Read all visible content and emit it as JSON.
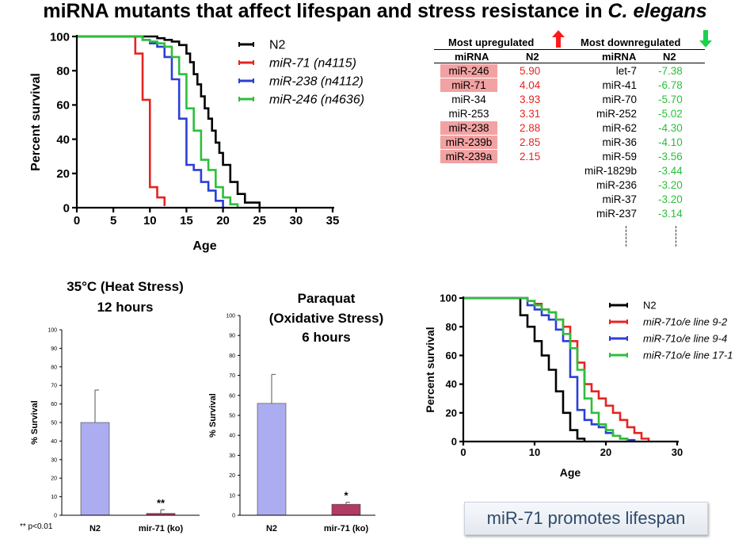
{
  "title": {
    "main": "miRNA mutants that affect lifespan and stress resistance in ",
    "species": "C. elegans"
  },
  "table": {
    "up_header": "Most upregulated",
    "down_header": "Most downregulated",
    "col_mirna": "miRNA",
    "col_n2": "N2",
    "up_color": "#e52421",
    "down_color": "#2cbf3a",
    "highlight_color": "#f2a2a2",
    "up": [
      {
        "name": "miR-246",
        "value": "5.90",
        "hl": true
      },
      {
        "name": "miR-71",
        "value": "4.04",
        "hl": true
      },
      {
        "name": "miR-34",
        "value": "3.93",
        "hl": false
      },
      {
        "name": "miR-253",
        "value": "3.31",
        "hl": false
      },
      {
        "name": "miR-238",
        "value": "2.88",
        "hl": true
      },
      {
        "name": "miR-239b",
        "value": "2.85",
        "hl": true
      },
      {
        "name": "miR-239a",
        "value": "2.15",
        "hl": true
      }
    ],
    "down": [
      {
        "name": "let-7",
        "value": "-7.38"
      },
      {
        "name": "miR-41",
        "value": "-6.78"
      },
      {
        "name": "miR-70",
        "value": "-5.70"
      },
      {
        "name": "miR-252",
        "value": "-5.02"
      },
      {
        "name": "miR-62",
        "value": "-4.30"
      },
      {
        "name": "miR-36",
        "value": "-4.10"
      },
      {
        "name": "miR-59",
        "value": "-3.56"
      },
      {
        "name": "miR-1829b",
        "value": "-3.44"
      },
      {
        "name": "miR-236",
        "value": "-3.20"
      },
      {
        "name": "miR-37",
        "value": "-3.20"
      },
      {
        "name": "miR-237",
        "value": "-3.14"
      }
    ]
  },
  "chart_data": [
    {
      "type": "line",
      "step": true,
      "xlabel": "Age",
      "ylabel": "Percent survival",
      "xlim": [
        0,
        35
      ],
      "ylim": [
        0,
        100
      ],
      "xticks": [
        0,
        5,
        10,
        15,
        20,
        25,
        30,
        35
      ],
      "yticks": [
        0,
        20,
        40,
        60,
        80,
        100
      ],
      "series": [
        {
          "name": "N2",
          "italic": false,
          "color": "#000000",
          "x": [
            0,
            10,
            11,
            12,
            13,
            14,
            15,
            15.5,
            16,
            16.5,
            17,
            17.5,
            18,
            18.5,
            19,
            19.5,
            20,
            21,
            22,
            23,
            25
          ],
          "y": [
            100,
            100,
            99,
            98,
            97,
            95,
            90,
            85,
            78,
            72,
            65,
            58,
            52,
            45,
            38,
            32,
            25,
            15,
            8,
            3,
            0
          ]
        },
        {
          "name": "miR-71 ",
          "suffix": "(n4115)",
          "italic": true,
          "color": "#e52421",
          "x": [
            0,
            7,
            8,
            9,
            10,
            11,
            12
          ],
          "y": [
            100,
            100,
            90,
            63,
            12,
            6,
            1
          ]
        },
        {
          "name": "miR-238 ",
          "suffix": "(n4112)",
          "italic": true,
          "color": "#2b3fd6",
          "x": [
            0,
            8,
            9,
            10,
            11,
            12,
            13,
            14,
            15,
            16,
            17,
            18,
            19,
            20
          ],
          "y": [
            100,
            100,
            98,
            96,
            94,
            88,
            75,
            52,
            25,
            22,
            15,
            10,
            4,
            0
          ]
        },
        {
          "name": "miR-246 ",
          "suffix": "(n4636)",
          "italic": true,
          "color": "#2cbf3a",
          "x": [
            0,
            8,
            9,
            10,
            11,
            12,
            13,
            14,
            15,
            16,
            17,
            18,
            19,
            20,
            21,
            22
          ],
          "y": [
            100,
            100,
            98,
            97,
            96,
            94,
            88,
            78,
            58,
            45,
            28,
            22,
            12,
            6,
            2,
            0
          ]
        }
      ]
    },
    {
      "type": "bar",
      "title": [
        "35°C (Heat Stress)",
        "12 hours"
      ],
      "categories": [
        "N2",
        "mir-71 (ko)"
      ],
      "values": [
        50,
        1
      ],
      "errors": [
        17.5,
        2
      ],
      "colors": [
        "#acacf1",
        "#b13b61"
      ],
      "annotations": [
        "",
        "**"
      ],
      "ylabel": "% Survival",
      "ylim": [
        0,
        100
      ],
      "yticks": [
        0,
        10,
        20,
        30,
        40,
        50,
        60,
        70,
        80,
        90,
        100
      ],
      "footnote": "** p<0.01"
    },
    {
      "type": "bar",
      "title": [
        "Paraquat",
        "(Oxidative Stress)",
        "6 hours"
      ],
      "categories": [
        "N2",
        "mir-71 (ko)"
      ],
      "values": [
        56,
        5.5
      ],
      "errors": [
        14.5,
        1
      ],
      "colors": [
        "#acacf1",
        "#b13b61"
      ],
      "annotations": [
        "",
        "*"
      ],
      "ylabel": "% Survival",
      "ylim": [
        0,
        100
      ],
      "yticks": [
        0,
        10,
        20,
        30,
        40,
        50,
        60,
        70,
        80,
        90,
        100
      ]
    },
    {
      "type": "line",
      "step": true,
      "xlabel": "Age",
      "ylabel": "Percent survival",
      "xlim": [
        0,
        30
      ],
      "ylim": [
        0,
        100
      ],
      "xticks": [
        0,
        10,
        20,
        30
      ],
      "yticks": [
        0,
        20,
        40,
        60,
        80,
        100
      ],
      "series": [
        {
          "name": "N2",
          "italic": false,
          "color": "#000000",
          "x": [
            0,
            7,
            8,
            9,
            10,
            11,
            12,
            13,
            14,
            15,
            16,
            17
          ],
          "y": [
            100,
            100,
            88,
            80,
            70,
            60,
            50,
            35,
            20,
            8,
            2,
            0
          ]
        },
        {
          "name": "miR-71o/e line 9-2",
          "italic": true,
          "color": "#e52421",
          "x": [
            0,
            8,
            9,
            10,
            11,
            12,
            13,
            14,
            15,
            16,
            17,
            18,
            19,
            20,
            21,
            22,
            23,
            24,
            25,
            26
          ],
          "y": [
            100,
            100,
            98,
            96,
            92,
            90,
            85,
            80,
            70,
            55,
            40,
            35,
            30,
            25,
            20,
            15,
            10,
            6,
            2,
            0
          ]
        },
        {
          "name": "miR-71o/e line 9-4",
          "italic": true,
          "color": "#2b3fd6",
          "x": [
            0,
            8,
            9,
            10,
            11,
            12,
            13,
            14,
            15,
            16,
            17,
            18,
            19,
            20,
            21,
            22,
            23,
            24
          ],
          "y": [
            100,
            100,
            95,
            92,
            88,
            85,
            78,
            70,
            45,
            22,
            15,
            12,
            10,
            6,
            4,
            2,
            1,
            0
          ]
        },
        {
          "name": "miR-71o/e line 17-1",
          "italic": true,
          "color": "#2cbf3a",
          "x": [
            0,
            8,
            9,
            10,
            11,
            12,
            13,
            14,
            15,
            16,
            17,
            18,
            19,
            20,
            21,
            22,
            23
          ],
          "y": [
            100,
            100,
            98,
            95,
            92,
            90,
            85,
            75,
            65,
            50,
            30,
            20,
            12,
            8,
            4,
            2,
            0
          ]
        }
      ]
    }
  ],
  "caption": "miR-71 promotes lifespan"
}
